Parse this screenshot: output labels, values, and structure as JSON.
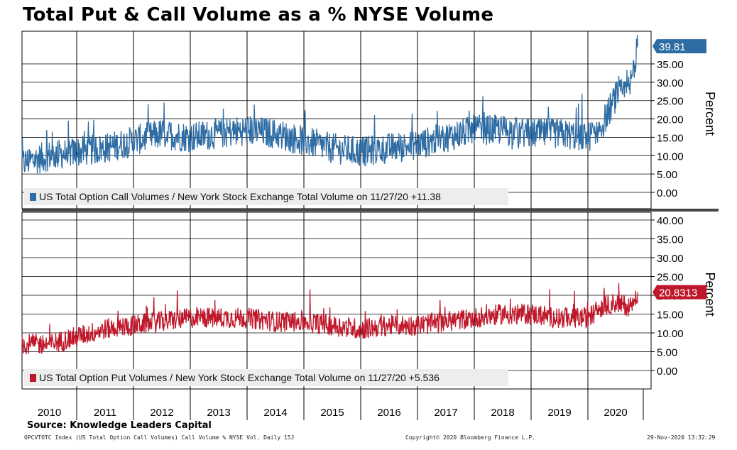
{
  "title": "Total Put & Call Volume as a % NYSE Volume",
  "source": "Source: Knowledge Leaders Capital",
  "footer": {
    "left": "OPCVTOTC Index (US Total Option Call Volumes) Call Volume % NYSE Vol.  Daily 15J",
    "center": "Copyright© 2020 Bloomberg Finance L.P.",
    "right": "29-Nov-2020 13:32:29"
  },
  "chart_data": [
    {
      "type": "line",
      "panel": "top",
      "ylabel": "Percent",
      "ylim": [
        -5,
        42
      ],
      "yticks": [
        "0.00",
        "5.00",
        "10.00",
        "15.00",
        "20.00",
        "25.00",
        "30.00",
        "35.00"
      ],
      "color": "#2e6ca4",
      "last_value_label": "39.81",
      "legend": "US Total Option Call Volumes / New York Stock Exchange Total Volume on 11/27/20 +11.38",
      "x": [
        "2010",
        "2010.5",
        "2011",
        "2011.5",
        "2012",
        "2012.5",
        "2013",
        "2013.5",
        "2014",
        "2014.5",
        "2015",
        "2015.5",
        "2016",
        "2016.5",
        "2017",
        "2017.5",
        "2018",
        "2018.5",
        "2019",
        "2019.5",
        "2020",
        "2020.25",
        "2020.5",
        "2020.75",
        "2020.9"
      ],
      "values": [
        8,
        10,
        11,
        12,
        14,
        16,
        15,
        16,
        17,
        16,
        14,
        12,
        11,
        12,
        13,
        15,
        17,
        17,
        16,
        16,
        15,
        18,
        26,
        28,
        39.81
      ]
    },
    {
      "type": "line",
      "panel": "bottom",
      "ylabel": "Percent",
      "ylim": [
        -3.5,
        40.5
      ],
      "yticks": [
        "0.00",
        "5.00",
        "10.00",
        "15.00",
        "20.00",
        "25.00",
        "30.00",
        "35.00",
        "40.00"
      ],
      "color": "#c0182b",
      "last_value_label": "20.8313",
      "legend": "US Total Option Put Volumes / New York Stock Exchange Total Volume on 11/27/20 +5.536",
      "x": [
        "2010",
        "2010.5",
        "2011",
        "2011.5",
        "2012",
        "2012.5",
        "2013",
        "2013.5",
        "2014",
        "2014.5",
        "2015",
        "2015.5",
        "2016",
        "2016.5",
        "2017",
        "2017.5",
        "2018",
        "2018.5",
        "2019",
        "2019.5",
        "2020",
        "2020.25",
        "2020.5",
        "2020.75",
        "2020.9"
      ],
      "values": [
        7,
        7,
        9,
        11,
        12,
        13,
        14,
        14,
        14,
        13,
        13,
        12,
        11,
        12,
        12,
        13,
        14,
        15,
        15,
        14,
        14,
        17,
        18,
        17,
        20.83
      ]
    }
  ],
  "years": [
    "2010",
    "2011",
    "2012",
    "2013",
    "2014",
    "2015",
    "2016",
    "2017",
    "2018",
    "2019",
    "2020"
  ]
}
